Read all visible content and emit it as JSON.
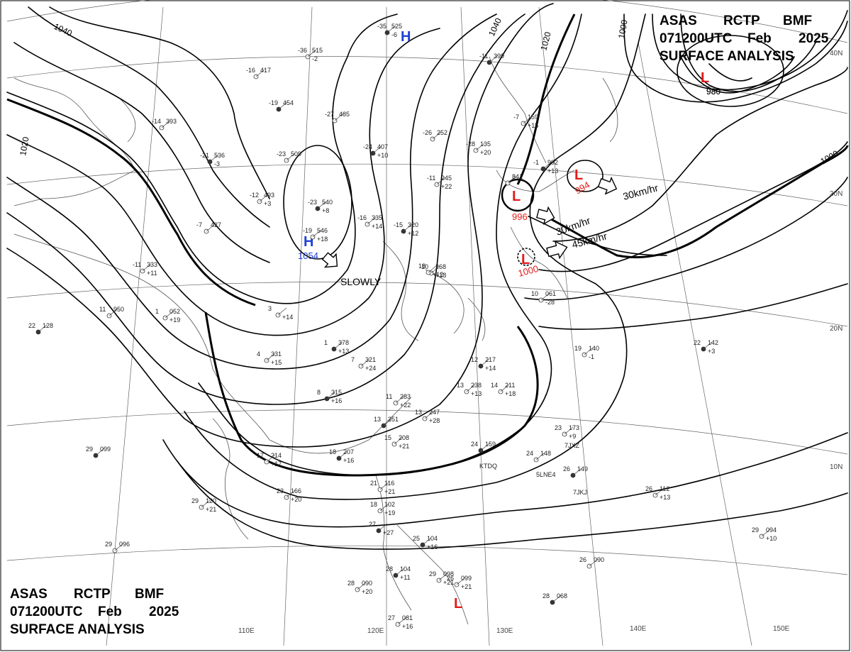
{
  "header_top": {
    "line1": [
      "ASAS",
      "RCTP",
      "BMF"
    ],
    "line2": [
      "071200UTC",
      "Feb",
      "2025"
    ],
    "line3": "SURFACE ANALYSIS"
  },
  "header_bottom": {
    "line1": [
      "ASAS",
      "RCTP",
      "BMF"
    ],
    "line2": [
      "071200UTC",
      "Feb",
      "2025"
    ],
    "line3": "SURFACE ANALYSIS"
  },
  "lat_labels": [
    "40N",
    "30N",
    "20N",
    "10N"
  ],
  "lon_labels": [
    "110E",
    "120E",
    "130E",
    "140E",
    "150E"
  ],
  "isobar_labels": [
    "1040",
    "1040",
    "1020",
    "1000",
    "980",
    "1000",
    "1020"
  ],
  "pressure_centers": [
    {
      "type": "L",
      "value": "980"
    },
    {
      "type": "L",
      "value": "994"
    },
    {
      "type": "L",
      "value": "996"
    },
    {
      "type": "L",
      "value": "1000"
    },
    {
      "type": "L",
      "value": ""
    },
    {
      "type": "H",
      "value": "1054"
    },
    {
      "type": "H",
      "value": ""
    }
  ],
  "movements": [
    "30km/hr",
    "30km/hr",
    "45km/hr",
    "SLOWLY"
  ],
  "ship_ids": [
    "7JXZ",
    "5LNE4",
    "7JKJ",
    "KTDQ"
  ],
  "stations": [
    {
      "t": "-35",
      "p": "525",
      "x": "-6",
      "id": "stn-a"
    },
    {
      "t": "-36",
      "p": "515",
      "x": "-2"
    },
    {
      "t": "-16",
      "p": "417",
      "x": ""
    },
    {
      "t": "-19",
      "p": "454",
      "x": ""
    },
    {
      "t": "-27",
      "p": "485",
      "x": ""
    },
    {
      "t": "-14",
      "p": "393",
      "x": ""
    },
    {
      "t": "-21",
      "p": "536",
      "x": "-3"
    },
    {
      "t": "-23",
      "p": "509",
      "x": ""
    },
    {
      "t": "-12",
      "p": "493",
      "x": "+3"
    },
    {
      "t": "-23",
      "p": "540",
      "x": "+8"
    },
    {
      "t": "-19",
      "p": "546",
      "x": "+18"
    },
    {
      "t": "-7",
      "p": "427",
      "x": ""
    },
    {
      "t": "-24",
      "p": "407",
      "x": "+10"
    },
    {
      "t": "-11",
      "p": "245",
      "x": "+22"
    },
    {
      "t": "-16",
      "p": "335",
      "x": "+14"
    },
    {
      "t": "-15",
      "p": "320",
      "x": "+12"
    },
    {
      "t": "-11",
      "p": "333",
      "x": "+11"
    },
    {
      "t": "11",
      "p": "950",
      "x": ""
    },
    {
      "t": "22",
      "p": "128",
      "x": ""
    },
    {
      "t": "1",
      "p": "052",
      "x": "+19"
    },
    {
      "t": "3",
      "p": "",
      "x": "+14"
    },
    {
      "t": "1",
      "p": "378",
      "x": "+13"
    },
    {
      "t": "4",
      "p": "331",
      "x": "+15"
    },
    {
      "t": "7",
      "p": "321",
      "x": "+24"
    },
    {
      "t": "8",
      "p": "315",
      "x": "+16"
    },
    {
      "t": "11",
      "p": "283",
      "x": "+22"
    },
    {
      "t": "13",
      "p": "247",
      "x": "+28"
    },
    {
      "t": "13",
      "p": "251",
      "x": ""
    },
    {
      "t": "15",
      "p": "208",
      "x": "+21"
    },
    {
      "t": "10",
      "p": "268",
      "x": "+18"
    },
    {
      "t": "18",
      "p": "207",
      "x": "+16"
    },
    {
      "t": "17",
      "p": "214",
      "x": "+17"
    },
    {
      "t": "23",
      "p": "166",
      "x": "+20"
    },
    {
      "t": "29",
      "p": "099",
      "x": ""
    },
    {
      "t": "29",
      "p": "120",
      "x": "+21"
    },
    {
      "t": "29",
      "p": "096",
      "x": ""
    },
    {
      "t": "12",
      "p": "217",
      "x": "+14"
    },
    {
      "t": "13",
      "p": "238",
      "x": "+13"
    },
    {
      "t": "14",
      "p": "211",
      "x": "+18"
    },
    {
      "t": "24",
      "p": "159",
      "x": ""
    },
    {
      "t": "24",
      "p": "148",
      "x": ""
    },
    {
      "t": "23",
      "p": "173",
      "x": "+9"
    },
    {
      "t": "26",
      "p": "149",
      "x": ""
    },
    {
      "t": "26",
      "p": "112",
      "x": "+13"
    },
    {
      "t": "19",
      "p": "140",
      "x": "-1"
    },
    {
      "t": "22",
      "p": "142",
      "x": "+3"
    },
    {
      "t": "29",
      "p": "094",
      "x": "+10"
    },
    {
      "t": "26",
      "p": "090",
      "x": ""
    },
    {
      "t": "28",
      "p": "068",
      "x": ""
    },
    {
      "t": "27",
      "p": "081",
      "x": "+16"
    },
    {
      "t": "28",
      "p": "090",
      "x": "+20"
    },
    {
      "t": "28",
      "p": "104",
      "x": "+11"
    },
    {
      "t": "29",
      "p": "098",
      "x": "+21"
    },
    {
      "t": "26",
      "p": "099",
      "x": "+21"
    },
    {
      "t": "25",
      "p": "104",
      "x": "+16"
    },
    {
      "t": "18",
      "p": "102",
      "x": "+19"
    },
    {
      "t": "21",
      "p": "116",
      "x": "+21"
    },
    {
      "t": "27",
      "p": "",
      "x": "+27"
    },
    {
      "t": "-28",
      "p": "135",
      "x": "+20"
    },
    {
      "t": "-7",
      "p": "159",
      "x": "+15"
    },
    {
      "t": "-1",
      "p": "992",
      "x": "+13"
    },
    {
      "t": "10",
      "p": "061",
      "x": "-28"
    },
    {
      "t": "",
      "p": "841",
      "x": ""
    },
    {
      "t": "-11",
      "p": "399",
      "x": ""
    },
    {
      "t": "-26",
      "p": "252",
      "x": ""
    },
    {
      "t": "18",
      "p": "",
      "x": "+12"
    }
  ]
}
